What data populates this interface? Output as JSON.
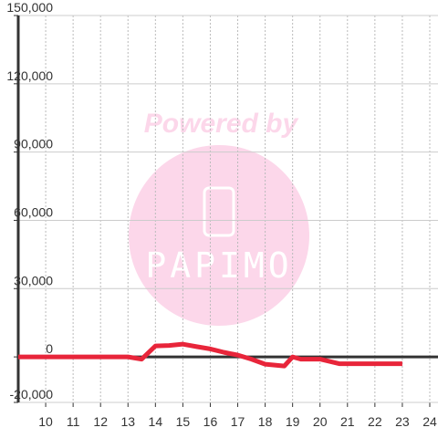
{
  "chart_data": {
    "type": "line",
    "watermark": {
      "caption": "Powered by",
      "brand": "PAPIMO"
    },
    "x": [
      9,
      13,
      13.5,
      14,
      14.5,
      15,
      15.5,
      16,
      16.5,
      17,
      17.5,
      18,
      18.7,
      19,
      19.3,
      20,
      20.7,
      21,
      23
    ],
    "series": [
      {
        "color": "#e8253a",
        "values": [
          0,
          0,
          -1000,
          4800,
          5000,
          5600,
          4500,
          3500,
          2000,
          800,
          -1000,
          -3200,
          -4000,
          0,
          -1000,
          -1000,
          -3000,
          -3000,
          -3000
        ]
      }
    ],
    "xlim": [
      9,
      24.3
    ],
    "xticks": [
      10,
      11,
      12,
      13,
      14,
      15,
      16,
      17,
      18,
      19,
      20,
      21,
      22,
      23,
      24
    ],
    "ylim": [
      -20000,
      150000
    ],
    "yticks": [
      {
        "value": -20000,
        "label": "-20,000"
      },
      0,
      {
        "value": 30000,
        "label": "30,000"
      },
      {
        "value": 60000,
        "label": "60,000"
      },
      {
        "value": 90000,
        "label": "90,000"
      },
      {
        "value": 120000,
        "label": "120,000"
      },
      {
        "value": 150000,
        "label": "150,000"
      }
    ],
    "grid": true
  }
}
